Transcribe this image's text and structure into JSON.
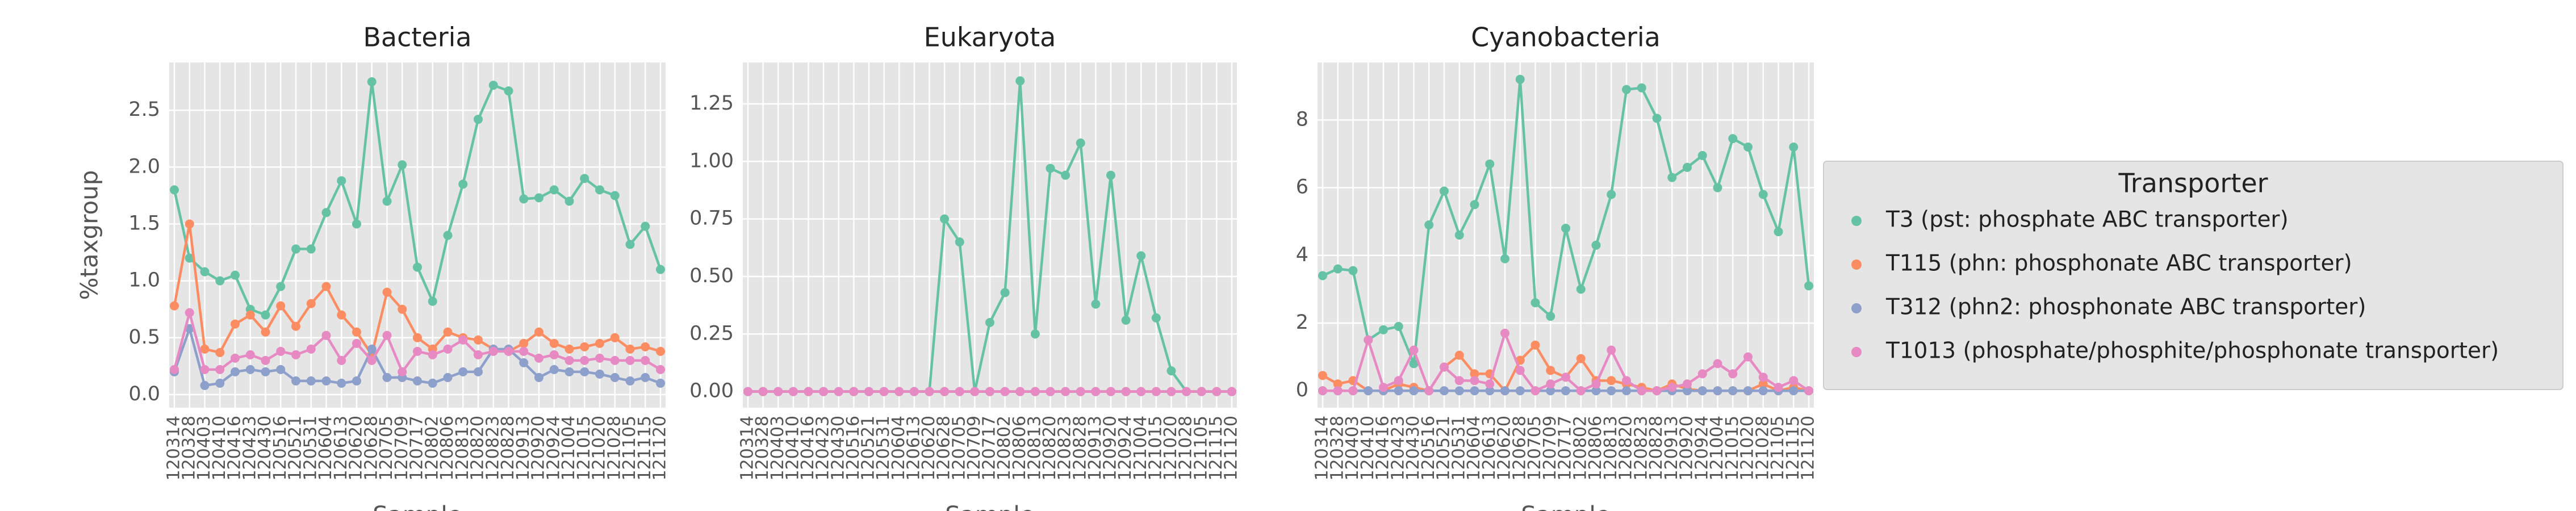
{
  "chart_data": [
    {
      "type": "line",
      "title": "Bacteria",
      "ylabel": "%taxgroup",
      "xlabel": "Sample",
      "legend_title": "Transporter",
      "legend": "right",
      "grid": true,
      "categories": [
        "120314",
        "120328",
        "120403",
        "120410",
        "120416",
        "120423",
        "120430",
        "120516",
        "120521",
        "120531",
        "120604",
        "120613",
        "120620",
        "120628",
        "120705",
        "120709",
        "120717",
        "120802",
        "120806",
        "120813",
        "120820",
        "120823",
        "120828",
        "120913",
        "120920",
        "120924",
        "121004",
        "121015",
        "121020",
        "121028",
        "121105",
        "121115",
        "121120"
      ],
      "ylim": [
        -0.115,
        2.92
      ],
      "yticks": [
        {
          "value": 0,
          "label": "0.0"
        },
        0.5,
        {
          "value": 1,
          "label": "1.0"
        },
        1.5,
        {
          "value": 2,
          "label": "2.0"
        },
        2.5
      ],
      "series": [
        {
          "name": "T3 (pst: phosphate ABC transporter)",
          "color": "#66c2a5",
          "values": [
            1.8,
            1.2,
            1.08,
            1.0,
            1.05,
            0.75,
            0.7,
            0.95,
            1.28,
            1.28,
            1.6,
            1.88,
            1.5,
            2.75,
            1.7,
            2.02,
            1.12,
            0.82,
            1.4,
            1.85,
            2.42,
            2.72,
            2.67,
            1.72,
            1.73,
            1.8,
            1.7,
            1.9,
            1.8,
            1.75,
            1.32,
            1.48,
            1.1
          ]
        },
        {
          "name": "T115 (phn: phosphonate ABC transporter)",
          "color": "#fc8d62",
          "values": [
            0.78,
            1.5,
            0.4,
            0.37,
            0.62,
            0.7,
            0.55,
            0.78,
            0.6,
            0.8,
            0.95,
            0.7,
            0.55,
            0.35,
            0.9,
            0.75,
            0.5,
            0.4,
            0.55,
            0.5,
            0.48,
            0.4,
            0.38,
            0.45,
            0.55,
            0.45,
            0.4,
            0.42,
            0.45,
            0.5,
            0.4,
            0.42,
            0.38
          ]
        },
        {
          "name": "T312 (phn2: phosphonate ABC transporter)",
          "color": "#8da0cb",
          "values": [
            0.2,
            0.58,
            0.08,
            0.1,
            0.2,
            0.22,
            0.2,
            0.22,
            0.12,
            0.12,
            0.12,
            0.1,
            0.12,
            0.4,
            0.15,
            0.15,
            0.12,
            0.1,
            0.15,
            0.2,
            0.2,
            0.4,
            0.4,
            0.28,
            0.15,
            0.22,
            0.2,
            0.2,
            0.18,
            0.15,
            0.12,
            0.15,
            0.1
          ]
        },
        {
          "name": "T1013 (phosphate/phosphite/phosphonate transporter)",
          "color": "#e78ac3",
          "values": [
            0.22,
            0.72,
            0.22,
            0.22,
            0.32,
            0.35,
            0.3,
            0.38,
            0.35,
            0.4,
            0.52,
            0.3,
            0.45,
            0.3,
            0.52,
            0.2,
            0.38,
            0.35,
            0.4,
            0.48,
            0.35,
            0.38,
            0.38,
            0.38,
            0.32,
            0.35,
            0.3,
            0.3,
            0.32,
            0.3,
            0.3,
            0.3,
            0.22
          ]
        }
      ]
    },
    {
      "type": "line",
      "title": "Eukaryota",
      "xlabel": "Sample",
      "grid": true,
      "categories": [
        "120314",
        "120328",
        "120403",
        "120410",
        "120416",
        "120423",
        "120430",
        "120516",
        "120521",
        "120531",
        "120604",
        "120613",
        "120620",
        "120628",
        "120705",
        "120709",
        "120717",
        "120802",
        "120806",
        "120813",
        "120820",
        "120823",
        "120828",
        "120913",
        "120920",
        "120924",
        "121004",
        "121015",
        "121020",
        "121028",
        "121105",
        "121115",
        "121120"
      ],
      "ylim": [
        -0.07,
        1.43
      ],
      "yticks": [
        {
          "value": 0,
          "label": "0.00"
        },
        0.25,
        {
          "value": 0.5,
          "label": "0.50"
        },
        0.75,
        {
          "value": 1,
          "label": "1.00"
        },
        1.25
      ],
      "series": [
        {
          "name": "T3 (pst: phosphate ABC transporter)",
          "color": "#66c2a5",
          "values": [
            0,
            0,
            0,
            0,
            0,
            0,
            0,
            0,
            0,
            0,
            0,
            0,
            0,
            0.75,
            0.65,
            0,
            0.3,
            0.43,
            1.35,
            0.25,
            0.97,
            0.94,
            1.08,
            0.38,
            0.94,
            0.31,
            0.59,
            0.32,
            0.09,
            0,
            0,
            0,
            0
          ]
        },
        {
          "name": "T115 (phn: phosphonate ABC transporter)",
          "color": "#fc8d62",
          "values": [
            0,
            0,
            0,
            0,
            0,
            0,
            0,
            0,
            0,
            0,
            0,
            0,
            0,
            0,
            0,
            0,
            0,
            0,
            0,
            0,
            0,
            0,
            0,
            0,
            0,
            0,
            0,
            0,
            0,
            0,
            0,
            0,
            0
          ]
        },
        {
          "name": "T312 (phn2: phosphonate ABC transporter)",
          "color": "#8da0cb",
          "values": [
            0,
            0,
            0,
            0,
            0,
            0,
            0,
            0,
            0,
            0,
            0,
            0,
            0,
            0,
            0,
            0,
            0,
            0,
            0,
            0,
            0,
            0,
            0,
            0,
            0,
            0,
            0,
            0,
            0,
            0,
            0,
            0,
            0
          ]
        },
        {
          "name": "T1013 (phosphate/phosphite/phosphonate transporter)",
          "color": "#e78ac3",
          "values": [
            0,
            0,
            0,
            0,
            0,
            0,
            0,
            0,
            0,
            0,
            0,
            0,
            0,
            0,
            0,
            0,
            0,
            0,
            0,
            0,
            0,
            0,
            0,
            0,
            0,
            0,
            0,
            0,
            0,
            0,
            0,
            0,
            0
          ]
        }
      ]
    },
    {
      "type": "line",
      "title": "Cyanobacteria",
      "xlabel": "Sample",
      "grid": true,
      "categories": [
        "120314",
        "120328",
        "120403",
        "120410",
        "120416",
        "120423",
        "120430",
        "120516",
        "120521",
        "120531",
        "120604",
        "120613",
        "120620",
        "120628",
        "120705",
        "120709",
        "120717",
        "120802",
        "120806",
        "120813",
        "120820",
        "120823",
        "120828",
        "120913",
        "120920",
        "120924",
        "121004",
        "121015",
        "121020",
        "121028",
        "121105",
        "121115",
        "121120"
      ],
      "ylim": [
        -0.5,
        9.7
      ],
      "yticks": [
        0,
        2,
        4,
        6,
        8
      ],
      "series": [
        {
          "name": "T3 (pst: phosphate ABC transporter)",
          "color": "#66c2a5",
          "values": [
            3.4,
            3.6,
            3.55,
            1.5,
            1.8,
            1.9,
            0.8,
            4.9,
            5.9,
            4.6,
            5.5,
            6.7,
            3.9,
            9.2,
            2.6,
            2.2,
            4.8,
            3.0,
            4.3,
            5.8,
            8.9,
            8.95,
            8.05,
            6.3,
            6.6,
            6.95,
            6.0,
            7.45,
            7.2,
            5.8,
            4.7,
            7.2,
            3.1
          ]
        },
        {
          "name": "T115 (phn: phosphonate ABC transporter)",
          "color": "#fc8d62",
          "values": [
            0.45,
            0.2,
            0.3,
            0,
            0,
            0.2,
            0.1,
            0,
            0.7,
            1.05,
            0.5,
            0.5,
            0,
            0.9,
            1.35,
            0.6,
            0.4,
            0.95,
            0.3,
            0.3,
            0.2,
            0.1,
            0,
            0.2,
            0.05,
            0,
            0,
            0,
            0,
            0.2,
            0,
            0.1,
            0
          ]
        },
        {
          "name": "T312 (phn2: phosphonate ABC transporter)",
          "color": "#8da0cb",
          "values": [
            0,
            0,
            0,
            0,
            0,
            0,
            0,
            0,
            0,
            0,
            0,
            0,
            0,
            0,
            0,
            0,
            0,
            0,
            0,
            0,
            0,
            0,
            0,
            0,
            0,
            0,
            0,
            0,
            0,
            0,
            0,
            0,
            0
          ]
        },
        {
          "name": "T1013 (phosphate/phosphite/phosphonate transporter)",
          "color": "#e78ac3",
          "values": [
            0,
            0,
            0,
            1.5,
            0.1,
            0.3,
            1.2,
            0,
            0.7,
            0.3,
            0.3,
            0.2,
            1.7,
            0.6,
            0,
            0.2,
            0.4,
            0,
            0.2,
            1.2,
            0.3,
            0,
            0,
            0.1,
            0.2,
            0.5,
            0.8,
            0.5,
            1.0,
            0.4,
            0.1,
            0.3,
            0
          ]
        }
      ]
    }
  ]
}
